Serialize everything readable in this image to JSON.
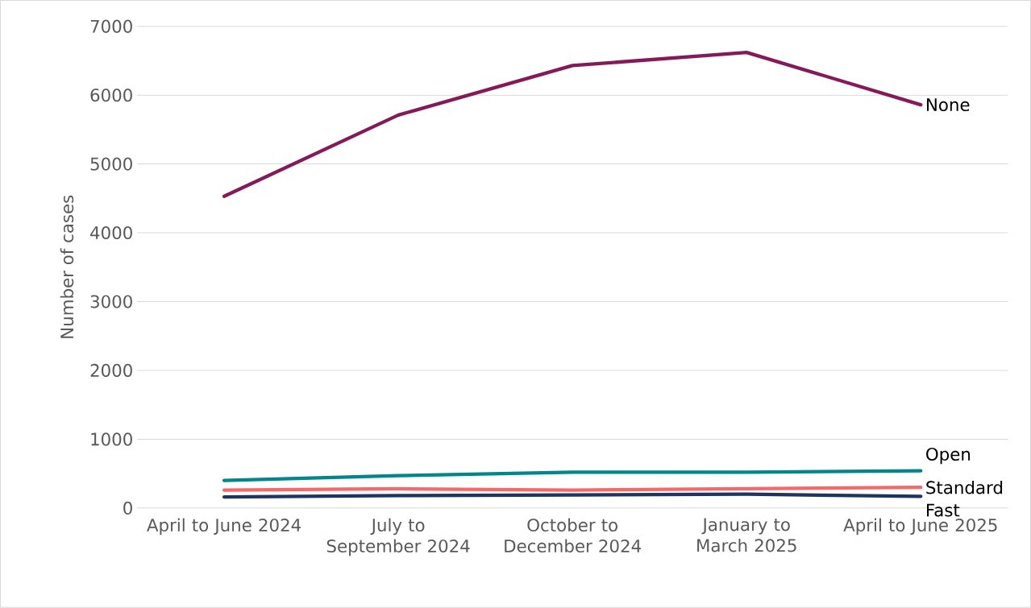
{
  "chart_data": {
    "type": "line",
    "ylabel": "Number of cases",
    "categories": [
      "April to June 2024",
      "July to September 2024",
      "October to December 2024",
      "January to March 2025",
      "April to June 2025"
    ],
    "series": [
      {
        "name": "None",
        "color": "#841a5a",
        "values": [
          4530,
          5710,
          6430,
          6620,
          5860
        ]
      },
      {
        "name": "Open",
        "color": "#00868b",
        "values": [
          400,
          470,
          520,
          520,
          540
        ]
      },
      {
        "name": "Standard",
        "color": "#f46a6a",
        "values": [
          260,
          280,
          260,
          280,
          300
        ]
      },
      {
        "name": "Fast",
        "color": "#1f3461",
        "values": [
          160,
          180,
          190,
          200,
          170
        ]
      }
    ],
    "ylim": [
      0,
      7000
    ],
    "yticks": [
      0,
      1000,
      2000,
      3000,
      4000,
      5000,
      6000,
      7000
    ],
    "grid": "y",
    "legend": false,
    "marker": "none",
    "line_style": "solid"
  }
}
